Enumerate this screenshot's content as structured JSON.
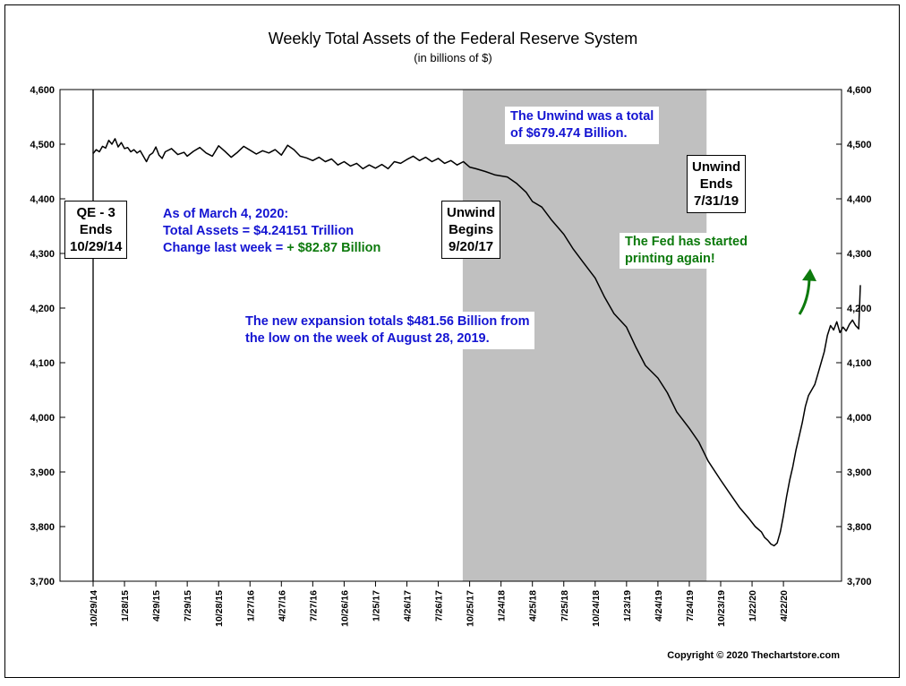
{
  "chart_data": {
    "type": "line",
    "title": "Weekly Total Assets of the Federal Reserve System",
    "subtitle": "(in billions of $)",
    "ylim": [
      3700,
      4600
    ],
    "yticks": [
      3700,
      3800,
      3900,
      4000,
      4100,
      4200,
      4300,
      4400,
      4500,
      4600
    ],
    "ytick_labels": [
      "3,700",
      "3,800",
      "3,900",
      "4,000",
      "4,100",
      "4,200",
      "4,300",
      "4,400",
      "4,500",
      "4,600"
    ],
    "xtick_labels": [
      "10/29/14",
      "1/28/15",
      "4/29/15",
      "7/29/15",
      "10/28/15",
      "1/27/16",
      "4/27/16",
      "7/27/16",
      "10/26/16",
      "1/25/17",
      "4/26/17",
      "7/26/17",
      "10/25/17",
      "1/24/18",
      "4/25/18",
      "7/25/18",
      "10/24/18",
      "1/23/19",
      "4/24/19",
      "7/24/19",
      "10/23/19",
      "1/22/20",
      "4/22/20"
    ],
    "x_unit": "quarter index from 10/29/14",
    "series": [
      {
        "name": "Weekly Total Assets",
        "color": "#000000",
        "points": [
          [
            0.0,
            4483
          ],
          [
            0.1,
            4490
          ],
          [
            0.2,
            4486
          ],
          [
            0.3,
            4496
          ],
          [
            0.4,
            4493
          ],
          [
            0.5,
            4507
          ],
          [
            0.6,
            4500
          ],
          [
            0.7,
            4510
          ],
          [
            0.8,
            4495
          ],
          [
            0.9,
            4503
          ],
          [
            1.0,
            4492
          ],
          [
            1.1,
            4494
          ],
          [
            1.2,
            4486
          ],
          [
            1.3,
            4490
          ],
          [
            1.4,
            4484
          ],
          [
            1.5,
            4488
          ],
          [
            1.6,
            4478
          ],
          [
            1.7,
            4468
          ],
          [
            1.8,
            4480
          ],
          [
            1.9,
            4484
          ],
          [
            2.0,
            4495
          ],
          [
            2.1,
            4480
          ],
          [
            2.2,
            4474
          ],
          [
            2.3,
            4486
          ],
          [
            2.5,
            4492
          ],
          [
            2.7,
            4481
          ],
          [
            2.9,
            4485
          ],
          [
            3.0,
            4478
          ],
          [
            3.2,
            4487
          ],
          [
            3.4,
            4494
          ],
          [
            3.6,
            4484
          ],
          [
            3.8,
            4478
          ],
          [
            4.0,
            4497
          ],
          [
            4.2,
            4487
          ],
          [
            4.4,
            4476
          ],
          [
            4.6,
            4485
          ],
          [
            4.8,
            4496
          ],
          [
            5.0,
            4489
          ],
          [
            5.2,
            4482
          ],
          [
            5.4,
            4488
          ],
          [
            5.6,
            4484
          ],
          [
            5.8,
            4490
          ],
          [
            6.0,
            4480
          ],
          [
            6.2,
            4498
          ],
          [
            6.4,
            4490
          ],
          [
            6.6,
            4478
          ],
          [
            6.8,
            4475
          ],
          [
            7.0,
            4470
          ],
          [
            7.2,
            4476
          ],
          [
            7.4,
            4468
          ],
          [
            7.6,
            4473
          ],
          [
            7.8,
            4462
          ],
          [
            8.0,
            4468
          ],
          [
            8.2,
            4460
          ],
          [
            8.4,
            4465
          ],
          [
            8.6,
            4455
          ],
          [
            8.8,
            4462
          ],
          [
            9.0,
            4456
          ],
          [
            9.2,
            4463
          ],
          [
            9.4,
            4455
          ],
          [
            9.6,
            4468
          ],
          [
            9.8,
            4465
          ],
          [
            10.0,
            4472
          ],
          [
            10.2,
            4478
          ],
          [
            10.4,
            4470
          ],
          [
            10.6,
            4476
          ],
          [
            10.8,
            4468
          ],
          [
            11.0,
            4474
          ],
          [
            11.2,
            4465
          ],
          [
            11.4,
            4470
          ],
          [
            11.6,
            4462
          ],
          [
            11.8,
            4468
          ],
          [
            12.0,
            4458
          ],
          [
            12.2,
            4455
          ],
          [
            12.5,
            4450
          ],
          [
            12.8,
            4444
          ],
          [
            13.2,
            4440
          ],
          [
            13.5,
            4428
          ],
          [
            13.8,
            4412
          ],
          [
            14.0,
            4395
          ],
          [
            14.3,
            4385
          ],
          [
            14.6,
            4362
          ],
          [
            15.0,
            4335
          ],
          [
            15.3,
            4308
          ],
          [
            15.6,
            4285
          ],
          [
            16.0,
            4255
          ],
          [
            16.3,
            4220
          ],
          [
            16.6,
            4190
          ],
          [
            17.0,
            4165
          ],
          [
            17.3,
            4128
          ],
          [
            17.6,
            4095
          ],
          [
            18.0,
            4072
          ],
          [
            18.3,
            4045
          ],
          [
            18.6,
            4010
          ],
          [
            19.0,
            3980
          ],
          [
            19.3,
            3955
          ],
          [
            19.6,
            3920
          ],
          [
            20.0,
            3885
          ],
          [
            20.3,
            3860
          ],
          [
            20.6,
            3835
          ],
          [
            20.9,
            3815
          ],
          [
            21.1,
            3800
          ],
          [
            21.3,
            3790
          ],
          [
            21.4,
            3780
          ],
          [
            21.5,
            3775
          ],
          [
            21.6,
            3768
          ],
          [
            21.7,
            3765
          ],
          [
            21.8,
            3770
          ],
          [
            21.9,
            3790
          ],
          [
            22.0,
            3820
          ],
          [
            22.1,
            3855
          ],
          [
            22.2,
            3885
          ],
          [
            22.3,
            3910
          ],
          [
            22.4,
            3940
          ],
          [
            22.5,
            3965
          ],
          [
            22.6,
            3990
          ],
          [
            22.7,
            4020
          ],
          [
            22.8,
            4040
          ],
          [
            22.9,
            4050
          ],
          [
            23.0,
            4060
          ],
          [
            23.1,
            4080
          ],
          [
            23.2,
            4100
          ],
          [
            23.3,
            4120
          ],
          [
            23.4,
            4150
          ],
          [
            23.5,
            4168
          ],
          [
            23.6,
            4160
          ],
          [
            23.7,
            4175
          ],
          [
            23.8,
            4155
          ],
          [
            23.9,
            4165
          ],
          [
            24.0,
            4158
          ],
          [
            24.1,
            4170
          ],
          [
            24.2,
            4178
          ],
          [
            24.3,
            4168
          ],
          [
            24.4,
            4162
          ],
          [
            24.45,
            4242
          ]
        ]
      }
    ],
    "shaded_regions": [
      {
        "from": "9/20/17",
        "to": "7/31/19",
        "from_x": 11.78,
        "to_x": 19.55,
        "color": "#c0c0c0"
      }
    ],
    "event_lines": [
      {
        "at": "10/29/14",
        "x": 0.0
      }
    ],
    "copyright": "Copyright © 2020 Thechartstore.com"
  },
  "annotations": {
    "qe3": {
      "line1": "QE - 3",
      "line2": "Ends",
      "line3": "10/29/14"
    },
    "asof": {
      "line1": "As of March 4, 2020:",
      "line2": "Total Assets = $4.24151 Trillion",
      "line3_prefix": "Change last week = ",
      "line3_value": "+ $82.87 Billion"
    },
    "unwind_begins": {
      "line1": "Unwind",
      "line2": "Begins",
      "line3": "9/20/17"
    },
    "unwind_total": {
      "line1": "The Unwind was a total",
      "line2": "of $679.474 Billion."
    },
    "unwind_ends": {
      "line1": "Unwind",
      "line2": "Ends",
      "line3": "7/31/19"
    },
    "fed_printing": {
      "line1": "The Fed has started",
      "line2": "printing again!"
    },
    "expansion": {
      "line1": "The new expansion totals $481.56 Billion from",
      "line2": "the low on the week of August 28, 2019."
    }
  },
  "colors": {
    "blue_text": "#1414d2",
    "green_text": "#0d7a0d",
    "shade": "#c0c0c0",
    "arrow": "#0d7a0d"
  }
}
